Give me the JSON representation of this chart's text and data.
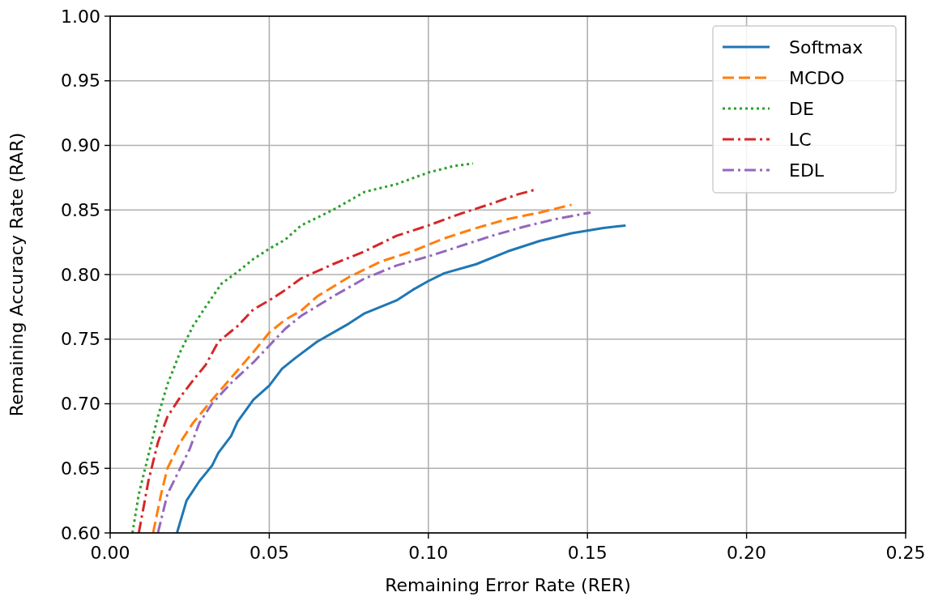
{
  "chart_data": {
    "type": "line",
    "xlabel": "Remaining Error Rate (RER)",
    "ylabel": "Remaining Accuracy Rate (RAR)",
    "xlim": [
      0,
      0.25
    ],
    "ylim": [
      0.6,
      1.0
    ],
    "xticks": [
      {
        "value": 0,
        "label": "0.00"
      },
      {
        "value": 0.05,
        "label": "0.05"
      },
      {
        "value": 0.1,
        "label": "0.10"
      },
      {
        "value": 0.15,
        "label": "0.15"
      },
      {
        "value": 0.2,
        "label": "0.20"
      },
      {
        "value": 0.25,
        "label": "0.25"
      }
    ],
    "yticks": [
      {
        "value": 0.6,
        "label": "0.60"
      },
      {
        "value": 0.65,
        "label": "0.65"
      },
      {
        "value": 0.7,
        "label": "0.70"
      },
      {
        "value": 0.75,
        "label": "0.75"
      },
      {
        "value": 0.8,
        "label": "0.80"
      },
      {
        "value": 0.85,
        "label": "0.85"
      },
      {
        "value": 0.9,
        "label": "0.90"
      },
      {
        "value": 0.95,
        "label": "0.95"
      },
      {
        "value": 1.0,
        "label": "1.00"
      }
    ],
    "grid": true,
    "legend": "top right",
    "marker": "none",
    "series": [
      {
        "name": "Softmax",
        "color": "#1f77b4",
        "line_style": "solid",
        "x": [
          0.021,
          0.024,
          0.028,
          0.032,
          0.034,
          0.038,
          0.04,
          0.045,
          0.05,
          0.054,
          0.058,
          0.065,
          0.075,
          0.08,
          0.09,
          0.095,
          0.1,
          0.105,
          0.115,
          0.125,
          0.135,
          0.145,
          0.155,
          0.162
        ],
        "values": [
          0.6,
          0.625,
          0.64,
          0.652,
          0.662,
          0.675,
          0.686,
          0.703,
          0.714,
          0.727,
          0.735,
          0.748,
          0.762,
          0.77,
          0.78,
          0.788,
          0.795,
          0.801,
          0.808,
          0.818,
          0.826,
          0.832,
          0.836,
          0.838
        ]
      },
      {
        "name": "MCDO",
        "color": "#ff7f0e",
        "line_style": "dashed",
        "x": [
          0.0135,
          0.016,
          0.018,
          0.022,
          0.026,
          0.032,
          0.038,
          0.045,
          0.05,
          0.055,
          0.06,
          0.065,
          0.075,
          0.085,
          0.095,
          0.105,
          0.115,
          0.125,
          0.135,
          0.145
        ],
        "values": [
          0.6,
          0.63,
          0.65,
          0.67,
          0.685,
          0.703,
          0.72,
          0.74,
          0.755,
          0.765,
          0.772,
          0.783,
          0.798,
          0.81,
          0.818,
          0.828,
          0.836,
          0.843,
          0.848,
          0.854
        ]
      },
      {
        "name": "DE",
        "color": "#2ca02c",
        "line_style": "dotted",
        "x": [
          0.007,
          0.009,
          0.012,
          0.015,
          0.018,
          0.022,
          0.026,
          0.03,
          0.035,
          0.04,
          0.045,
          0.05,
          0.055,
          0.06,
          0.07,
          0.08,
          0.09,
          0.1,
          0.108,
          0.114
        ],
        "values": [
          0.6,
          0.63,
          0.66,
          0.69,
          0.715,
          0.74,
          0.76,
          0.775,
          0.793,
          0.802,
          0.812,
          0.82,
          0.827,
          0.838,
          0.85,
          0.864,
          0.87,
          0.879,
          0.884,
          0.886
        ]
      },
      {
        "name": "LC",
        "color": "#d62728",
        "line_style": "dashdot",
        "x": [
          0.009,
          0.012,
          0.015,
          0.018,
          0.022,
          0.026,
          0.03,
          0.034,
          0.04,
          0.045,
          0.05,
          0.055,
          0.06,
          0.07,
          0.08,
          0.09,
          0.1,
          0.11,
          0.12,
          0.128,
          0.134
        ],
        "values": [
          0.6,
          0.64,
          0.67,
          0.69,
          0.705,
          0.718,
          0.73,
          0.748,
          0.76,
          0.773,
          0.78,
          0.788,
          0.797,
          0.808,
          0.818,
          0.83,
          0.838,
          0.847,
          0.855,
          0.862,
          0.866
        ]
      },
      {
        "name": "EDL",
        "color": "#9467bd",
        "line_style": "dashdot",
        "x": [
          0.015,
          0.018,
          0.022,
          0.025,
          0.028,
          0.032,
          0.038,
          0.045,
          0.05,
          0.055,
          0.06,
          0.07,
          0.08,
          0.09,
          0.1,
          0.11,
          0.12,
          0.13,
          0.14,
          0.151
        ],
        "values": [
          0.6,
          0.63,
          0.65,
          0.665,
          0.685,
          0.7,
          0.716,
          0.732,
          0.745,
          0.758,
          0.768,
          0.783,
          0.797,
          0.807,
          0.814,
          0.822,
          0.83,
          0.837,
          0.843,
          0.848
        ]
      }
    ]
  }
}
